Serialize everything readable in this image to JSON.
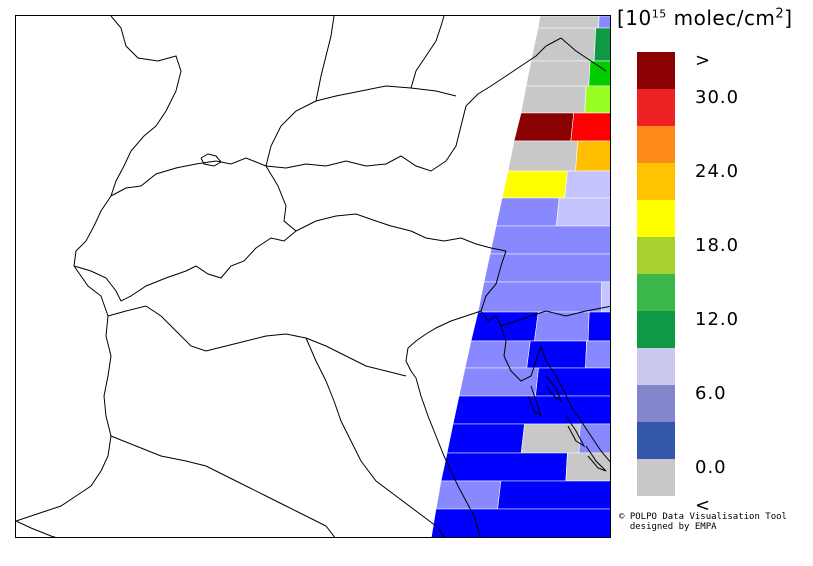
{
  "unit": {
    "prefix": "[10",
    "exp": "15",
    "mid": " molec/cm",
    "sq": "2",
    "suffix": "]"
  },
  "legend": {
    "items": [
      {
        "label": ">",
        "color": "#8b0000"
      },
      {
        "label": "30.0",
        "color": "#ee2222"
      },
      {
        "label": "",
        "color": "#ff8a1a"
      },
      {
        "label": "24.0",
        "color": "#ffc400"
      },
      {
        "label": "",
        "color": "#ffff00"
      },
      {
        "label": "18.0",
        "color": "#a8d12e"
      },
      {
        "label": "",
        "color": "#3bb84a"
      },
      {
        "label": "12.0",
        "color": "#0e9a44"
      },
      {
        "label": "",
        "color": "#c9c9ef"
      },
      {
        "label": "6.0",
        "color": "#8585cc"
      },
      {
        "label": "",
        "color": "#3355aa"
      },
      {
        "label": "0.0",
        "color": "#c8c8c8"
      },
      {
        "label": "<",
        "color": ""
      }
    ]
  },
  "credit": {
    "line1": "© POLPO Data Visualisation Tool",
    "line2": "designed by EMPA"
  },
  "colors": {
    "no_data": "#c8c8c8",
    "dark_red": "#8b0000",
    "red": "#ff0000",
    "orange": "#ffbf00",
    "yellow": "#ffff00",
    "light_green": "#99ff22",
    "green": "#00cc00",
    "dark_green": "#109944",
    "light_lavender": "#c4c4ff",
    "lavender": "#8888ff",
    "blue": "#0000ff",
    "border_lines": "#000000"
  }
}
